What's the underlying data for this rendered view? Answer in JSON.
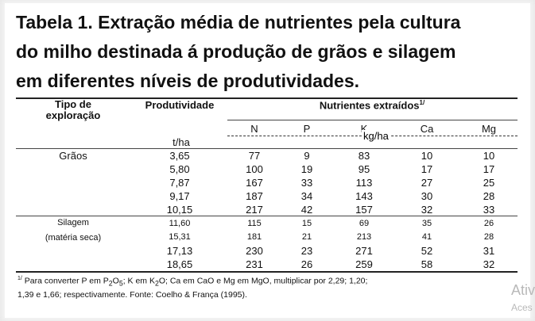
{
  "title_lines": [
    "Tabela 1. Extração média de nutrientes pela cultura",
    "do milho destinada á produção de grãos e silagem",
    "em diferentes níveis de produtividades."
  ],
  "header": {
    "tipo_line1": "Tipo de",
    "tipo_line2": "exploração",
    "produtividade": "Produtividade",
    "nutrientes": "Nutrientes extraídos",
    "nutrientes_sup": "1/",
    "unit_prod": "t/ha",
    "unit_nutr": "kg/ha",
    "cols": [
      "N",
      "P",
      "K",
      "Ca",
      "Mg"
    ]
  },
  "groups": [
    {
      "label_lines": [
        "Grãos"
      ],
      "rows": [
        [
          "3,65",
          "77",
          "9",
          "83",
          "10",
          "10"
        ],
        [
          "5,80",
          "100",
          "19",
          "95",
          "17",
          "17"
        ],
        [
          "7,87",
          "167",
          "33",
          "113",
          "27",
          "25"
        ],
        [
          "9,17",
          "187",
          "34",
          "143",
          "30",
          "28"
        ],
        [
          "10,15",
          "217",
          "42",
          "157",
          "32",
          "33"
        ]
      ]
    },
    {
      "label_lines": [
        "Silagem",
        "(matéria seca)"
      ],
      "rows": [
        [
          "11,60",
          "115",
          "15",
          "69",
          "35",
          "26"
        ],
        [
          "15,31",
          "181",
          "21",
          "213",
          "41",
          "28"
        ],
        [
          "17,13",
          "230",
          "23",
          "271",
          "52",
          "31"
        ],
        [
          "18,65",
          "231",
          "26",
          "259",
          "58",
          "32"
        ]
      ]
    }
  ],
  "footnote": {
    "sup": "1/",
    "text1": " Para converter P em P",
    "sub1": "2",
    "text2": "O",
    "sub2": "5",
    "text3": "; K em K",
    "sub3": "2",
    "text4": "O; Ca em CaO e Mg em MgO, multiplicar por 2,29; 1,20;",
    "line2": "1,39 e 1,66; respectivamente. Fonte: Coelho & França (1995)."
  },
  "watermark": {
    "line1": "Ativ",
    "line2": "Aces"
  }
}
